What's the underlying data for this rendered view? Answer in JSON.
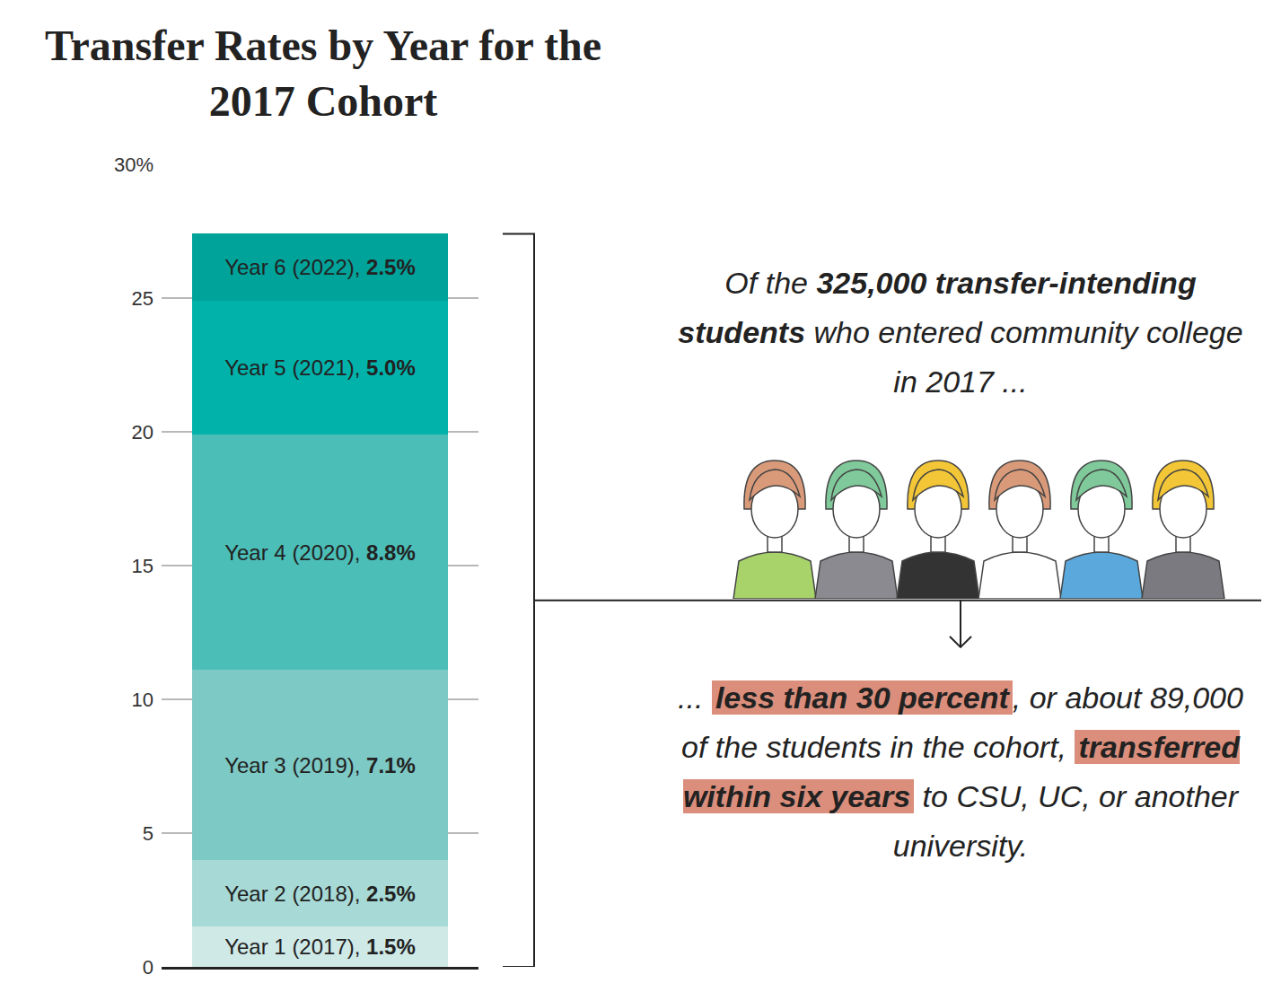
{
  "chart_data": {
    "type": "bar",
    "title": "Transfer Rates by Year for the 2017 Cohort",
    "categories": [
      null
    ],
    "stacked": true,
    "data_labels": true,
    "grid": true,
    "tick_labels": "y",
    "ylim": [
      0,
      30
    ],
    "yticks": [
      0,
      5,
      10,
      15,
      20,
      25,
      {
        "value": 30,
        "label": "30%"
      }
    ],
    "series": [
      {
        "name": "Year 1 (2017)",
        "color": "#cfe9e7",
        "values": [
          1.5
        ],
        "value_labels": [
          "Year 1 (2017), 1.5%"
        ]
      },
      {
        "name": "Year 2 (2018)",
        "color": "#a7dad6",
        "values": [
          2.5
        ],
        "value_labels": [
          "Year 2 (2018), 2.5%"
        ]
      },
      {
        "name": "Year 3 (2019)",
        "color": "#7dc9c5",
        "values": [
          7.1
        ],
        "value_labels": [
          "Year 3 (2019), 7.1%"
        ]
      },
      {
        "name": "Year 4 (2020), ",
        "color": "#4bbeb7",
        "values": [
          8.8
        ],
        "value_labels": [
          "Year 4 (2020), 8.8%"
        ]
      },
      {
        "name": "Year 5 (2021)",
        "color": "#00b2aa",
        "values": [
          5.0
        ],
        "value_labels": [
          "Year 5 (2021), 5.0%"
        ]
      },
      {
        "name": "Year 6 (2022)",
        "color": "#00a39a",
        "values": [
          2.5
        ],
        "value_labels": [
          "Year 6 (2022), 2.5%"
        ]
      }
    ],
    "annotations": [
      {
        "parts": [
          {
            "text": "Of the "
          },
          {
            "text": "325,000 transfer-intending students",
            "style": "bold"
          },
          {
            "text": " who entered community college in 2017 ..."
          }
        ]
      },
      {
        "parts": [
          {
            "text": "... "
          },
          {
            "text": "less than 30 percent",
            "style": "highlight"
          },
          {
            "text": ", or about 89,000 of the students in the cohort, "
          },
          {
            "text": "transferred within six years",
            "style": "highlight"
          },
          {
            "text": " to CSU, UC, or another university."
          }
        ]
      }
    ]
  }
}
